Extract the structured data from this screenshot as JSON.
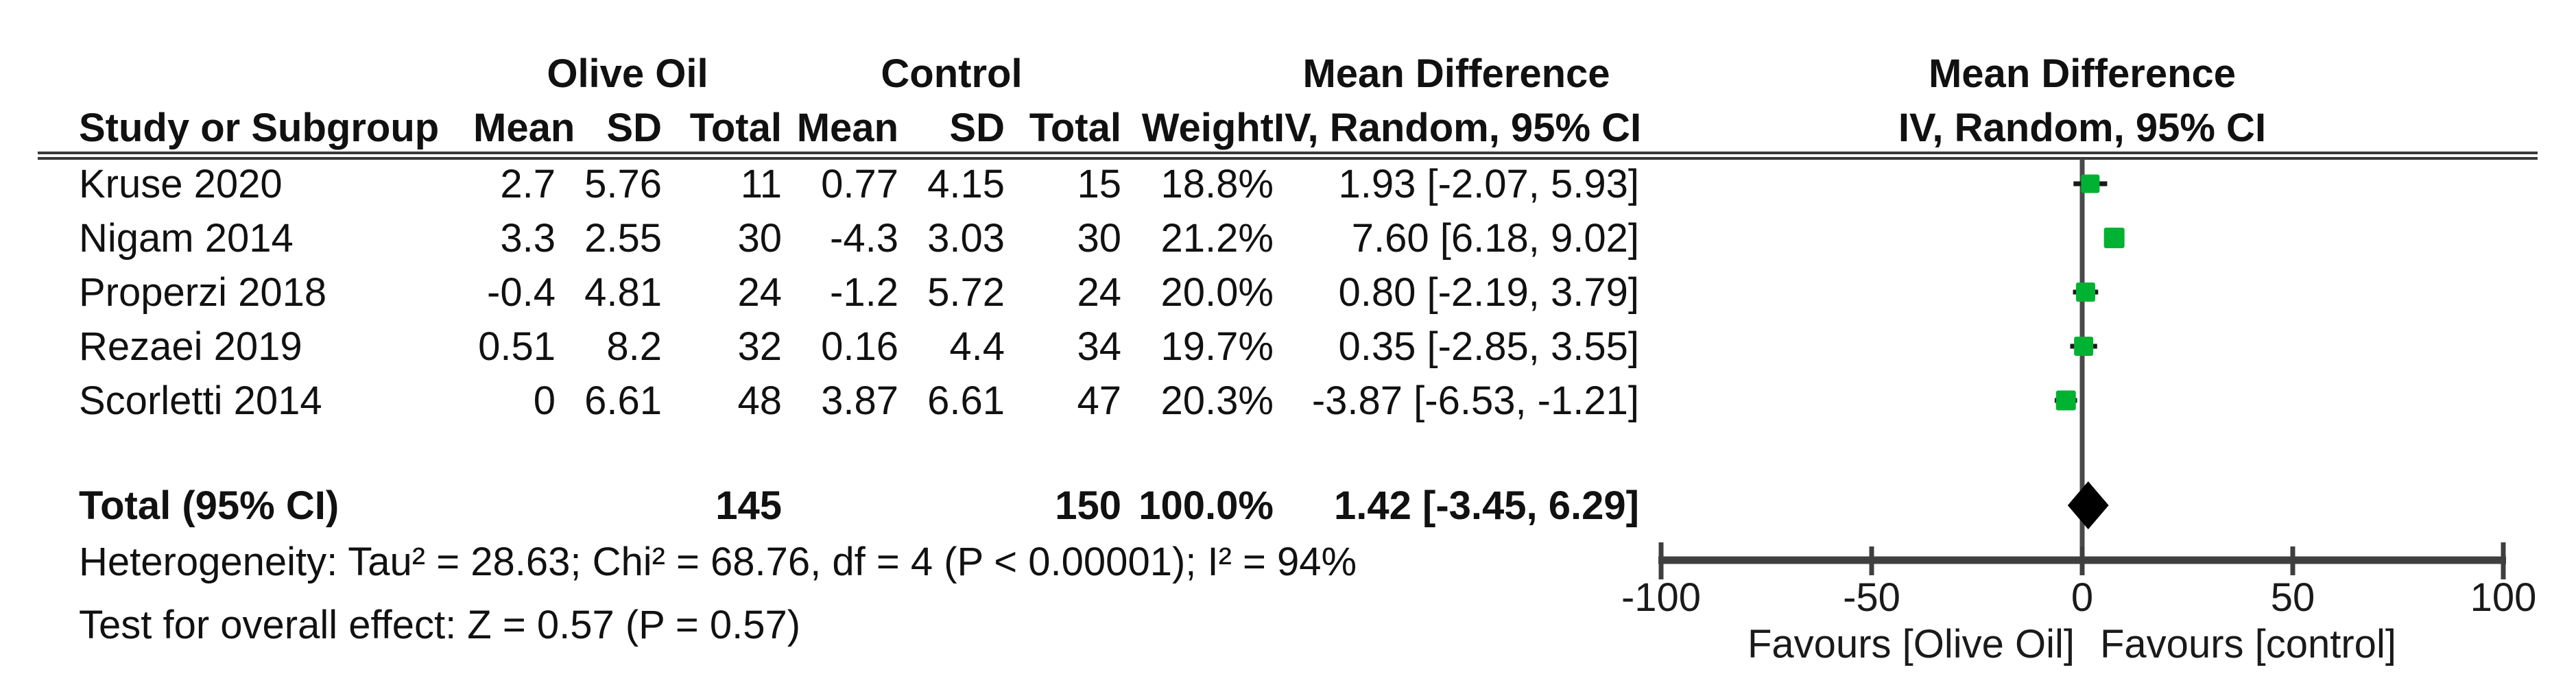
{
  "table": {
    "group_headers": {
      "olive_oil": "Olive Oil",
      "control": "Control",
      "mean_difference": "Mean Difference"
    },
    "plot_headers": {
      "line1": "Mean Difference",
      "line2": "IV, Random, 95% CI"
    },
    "columns": {
      "study": "Study or Subgroup",
      "mean": "Mean",
      "sd": "SD",
      "total": "Total",
      "weight": "Weight",
      "ci": "IV, Random, 95% CI"
    },
    "rows": [
      {
        "study": "Kruse 2020",
        "mean1": "2.7",
        "sd1": "5.76",
        "total1": "11",
        "mean2": "0.77",
        "sd2": "4.15",
        "total2": "15",
        "weight": "18.8%",
        "ci": "1.93 [-2.07, 5.93]"
      },
      {
        "study": "Nigam 2014",
        "mean1": "3.3",
        "sd1": "2.55",
        "total1": "30",
        "mean2": "-4.3",
        "sd2": "3.03",
        "total2": "30",
        "weight": "21.2%",
        "ci": "7.60 [6.18, 9.02]"
      },
      {
        "study": "Properzi 2018",
        "mean1": "-0.4",
        "sd1": "4.81",
        "total1": "24",
        "mean2": "-1.2",
        "sd2": "5.72",
        "total2": "24",
        "weight": "20.0%",
        "ci": "0.80 [-2.19, 3.79]"
      },
      {
        "study": "Rezaei 2019",
        "mean1": "0.51",
        "sd1": "8.2",
        "total1": "32",
        "mean2": "0.16",
        "sd2": "4.4",
        "total2": "34",
        "weight": "19.7%",
        "ci": "0.35 [-2.85, 3.55]"
      },
      {
        "study": "Scorletti 2014",
        "mean1": "0",
        "sd1": "6.61",
        "total1": "48",
        "mean2": "3.87",
        "sd2": "6.61",
        "total2": "47",
        "weight": "20.3%",
        "ci": "-3.87 [-6.53, -1.21]"
      }
    ],
    "total_row": {
      "label": "Total (95% CI)",
      "total1": "145",
      "total2": "150",
      "weight": "100.0%",
      "ci": "1.42 [-3.45, 6.29]"
    },
    "footnotes": {
      "heterogeneity": "Heterogeneity: Tau² = 28.63; Chi² = 68.76, df = 4 (P < 0.00001); I² = 94%",
      "overall_effect": "Test for overall effect: Z = 0.57 (P = 0.57)"
    }
  },
  "chart_data": {
    "type": "forest",
    "effect_measure": "Mean Difference, IV, Random, 95% CI",
    "x_axis": {
      "min": -100,
      "max": 100,
      "ticks": [
        -100,
        -50,
        0,
        50,
        100
      ]
    },
    "studies": [
      {
        "name": "Kruse 2020",
        "md": 1.93,
        "ci_low": -2.07,
        "ci_high": 5.93,
        "weight_pct": 18.8
      },
      {
        "name": "Nigam 2014",
        "md": 7.6,
        "ci_low": 6.18,
        "ci_high": 9.02,
        "weight_pct": 21.2
      },
      {
        "name": "Properzi 2018",
        "md": 0.8,
        "ci_low": -2.19,
        "ci_high": 3.79,
        "weight_pct": 20.0
      },
      {
        "name": "Rezaei 2019",
        "md": 0.35,
        "ci_low": -2.85,
        "ci_high": 3.55,
        "weight_pct": 19.7
      },
      {
        "name": "Scorletti 2014",
        "md": -3.87,
        "ci_low": -6.53,
        "ci_high": -1.21,
        "weight_pct": 20.3
      }
    ],
    "total": {
      "label": "Total (95% CI)",
      "md": 1.42,
      "ci_low": -3.45,
      "ci_high": 6.29,
      "weight_pct": 100.0
    },
    "favours_left": "Favours [Olive Oil]",
    "favours_right": "Favours [control]",
    "colors": {
      "study_marker": "#00b232",
      "diamond": "#000000",
      "axis": "#3f3f3f",
      "zero_line": "#4a4a4a",
      "ci_line": "#1a1a1a"
    }
  }
}
